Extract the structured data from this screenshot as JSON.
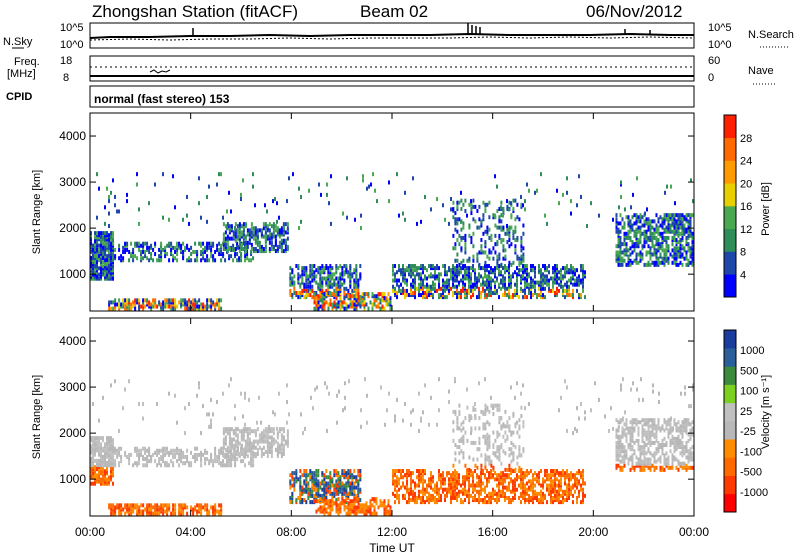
{
  "header": {
    "title": "Zhongshan Station (fitACF)",
    "beam": "Beam 02",
    "date": "06/Nov/2012"
  },
  "top_panels": {
    "nsky_label": "N.Sky",
    "nsky_ticks": [
      "10^5",
      "10^0"
    ],
    "nsearch_label": "N.Search",
    "nsearch_ticks": [
      "10^5",
      "10^0"
    ],
    "freq_label_1": "Freq.",
    "freq_label_2": "[MHz]",
    "freq_ticks": [
      "18",
      "8"
    ],
    "nave_label": "Nave",
    "nave_ticks": [
      "60",
      "0"
    ],
    "cpid_label": "CPID",
    "cpid_text": "normal (fast stereo) 153"
  },
  "colors": {
    "power_scale": [
      "#0000ff",
      "#1d47a8",
      "#2f8d5a",
      "#4aa850",
      "#e8d000",
      "#ff9a00",
      "#ff6a00",
      "#ff2000"
    ],
    "velocity_scale": [
      "#1a3c9c",
      "#2a5f9a",
      "#3c8a3c",
      "#7cd020",
      "#c0c0c0",
      "#b8b8b8",
      "#ff8c00",
      "#ff6a00",
      "#ff3a00",
      "#ff0000"
    ]
  },
  "chart_data": [
    {
      "type": "heatmap",
      "name": "power",
      "ylabel": "Slant Range [km]",
      "yticks": [
        "1000",
        "2000",
        "3000",
        "4000"
      ],
      "ylim": [
        200,
        4500
      ],
      "xticks": [
        "00:00",
        "04:00",
        "08:00",
        "12:00",
        "16:00",
        "20:00",
        "00:00"
      ],
      "colorbar_label": "Power [dB]",
      "colorbar_ticks": [
        "4",
        "8",
        "12",
        "16",
        "20",
        "24",
        "28"
      ]
    },
    {
      "type": "heatmap",
      "name": "velocity",
      "ylabel": "Slant Range [km]",
      "yticks": [
        "1000",
        "2000",
        "3000",
        "4000"
      ],
      "ylim": [
        200,
        4500
      ],
      "xlabel": "Time UT",
      "xticks": [
        "00:00",
        "04:00",
        "08:00",
        "12:00",
        "16:00",
        "20:00",
        "00:00"
      ],
      "colorbar_label": "Velocity [m s⁻¹]",
      "colorbar_ticks": [
        "1000",
        "500",
        "100",
        "25",
        "-25",
        "-100",
        "-500",
        "-1000"
      ]
    }
  ]
}
